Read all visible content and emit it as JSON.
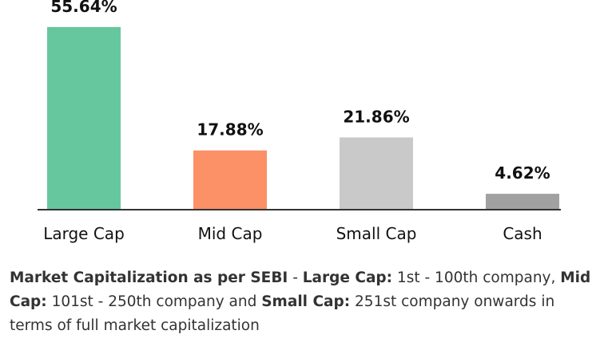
{
  "chart_data": {
    "type": "bar",
    "categories": [
      "Large Cap",
      "Mid Cap",
      "Small Cap",
      "Cash"
    ],
    "values": [
      55.64,
      17.88,
      21.86,
      4.62
    ],
    "value_labels": [
      "55.64%",
      "17.88%",
      "21.86%",
      "4.62%"
    ],
    "colors": [
      "#66c79f",
      "#fc9066",
      "#c9c9c9",
      "#a1a1a1"
    ],
    "ylim": [
      0,
      60
    ],
    "grid": false,
    "legend": "none",
    "axis_color": "#333333"
  },
  "footnote": {
    "b1": "Market Capitalization as per SEBI",
    "t1": " - ",
    "b2": "Large Cap:",
    "t2": " 1st - 100th company, ",
    "b3": "Mid Cap:",
    "t3": " 101st - 250th company and ",
    "b4": "Small Cap:",
    "t4": " 251st company onwards in terms of full market capitalization"
  }
}
